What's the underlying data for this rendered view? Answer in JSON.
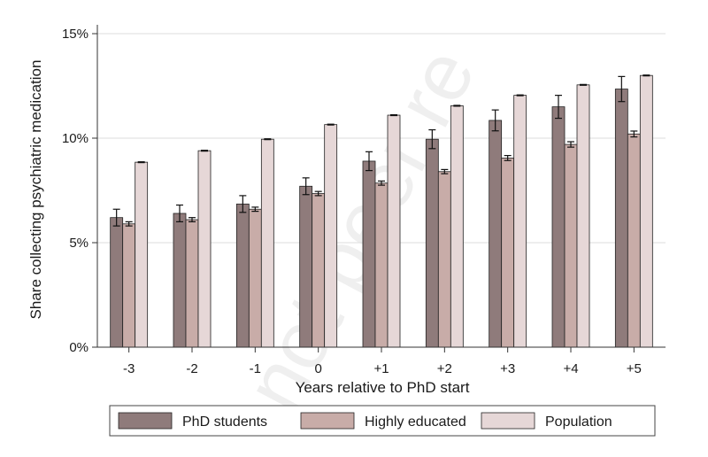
{
  "chart_data": {
    "type": "bar",
    "xlabel": "Years relative to PhD start",
    "ylabel": "Share collecting psychiatric medication",
    "categories": [
      "-3",
      "-2",
      "-1",
      "0",
      "+1",
      "+2",
      "+3",
      "+4",
      "+5"
    ],
    "ylim": [
      0,
      15
    ],
    "yticks": [
      "0%",
      "5%",
      "10%",
      "15%"
    ],
    "grid": true,
    "legend_position": "bottom",
    "series": [
      {
        "name": "PhD students",
        "color": "#8f7b7b",
        "values": [
          6.2,
          6.4,
          6.85,
          7.7,
          8.9,
          9.95,
          10.85,
          11.5,
          12.35
        ],
        "err": [
          0.4,
          0.4,
          0.4,
          0.4,
          0.45,
          0.45,
          0.5,
          0.55,
          0.6
        ]
      },
      {
        "name": "Highly educated",
        "color": "#c8aca8",
        "values": [
          5.9,
          6.1,
          6.6,
          7.35,
          7.85,
          8.4,
          9.05,
          9.7,
          10.2
        ],
        "err": [
          0.1,
          0.1,
          0.1,
          0.1,
          0.1,
          0.1,
          0.12,
          0.13,
          0.14
        ]
      },
      {
        "name": "Population",
        "color": "#e6d7d7",
        "values": [
          8.85,
          9.4,
          9.95,
          10.65,
          11.1,
          11.55,
          12.05,
          12.55,
          13.0
        ],
        "err": [
          0.02,
          0.02,
          0.02,
          0.02,
          0.02,
          0.02,
          0.02,
          0.02,
          0.02
        ]
      }
    ]
  },
  "watermark": "not peer re"
}
